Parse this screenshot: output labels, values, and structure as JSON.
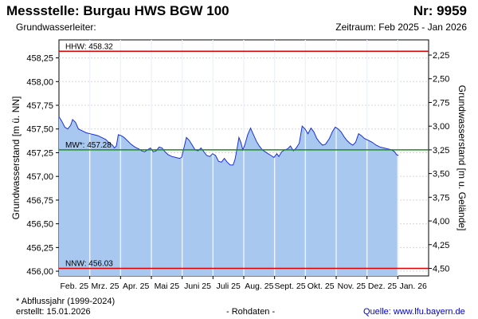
{
  "header": {
    "title": "Messstelle: Burgau HWS BGW 100",
    "number": "Nr: 9959",
    "aquifer": "Grundwasserleiter:",
    "period": "Zeitraum: Feb 2025 - Jan 2026"
  },
  "footer": {
    "note": "* Abflussjahr (1999-2024)",
    "created": "erstellt:  15.01.2026",
    "raw": "- Rohdaten -",
    "source": "Quelle:  www.lfu.bayern.de"
  },
  "colors": {
    "area_fill": "#a9c8ef",
    "line": "#1a2fd6",
    "hhw": "#e00000",
    "nnw": "#e00000",
    "mw": "#1f8a1f",
    "grid": "#d8d8d8"
  },
  "chart_data": {
    "type": "area",
    "ylabel": "Grundwasserstand [m ü. NN]",
    "ylabel_right": "Grundwasserstand [m u. Gelände]",
    "ylim": [
      455.95,
      458.44
    ],
    "yticks": [
      456.0,
      456.25,
      456.5,
      456.75,
      457.0,
      457.25,
      457.5,
      457.75,
      458.0,
      458.25
    ],
    "ytick_labels": [
      "456,00",
      "456,25",
      "456,50",
      "456,75",
      "457,00",
      "457,25",
      "457,50",
      "457,75",
      "458,00",
      "458,25"
    ],
    "ground_level": 460.53,
    "right_ticks": [
      2.25,
      2.5,
      2.75,
      3.0,
      3.25,
      3.5,
      3.75,
      4.0,
      4.25,
      4.5
    ],
    "right_tick_labels": [
      "2,25",
      "2,50",
      "2,75",
      "3,00",
      "3,25",
      "3,50",
      "3,75",
      "4,00",
      "4,25",
      "4,50"
    ],
    "x_months": [
      "Feb. 25",
      "Mrz. 25",
      "Apr. 25",
      "Mai 25",
      "Juni 25",
      "Juli 25",
      "Aug. 25",
      "Sept. 25",
      "Okt. 25",
      "Nov. 25",
      "Dez. 25",
      "Jan. 26"
    ],
    "x_range_days": [
      0,
      380
    ],
    "reference_lines": [
      {
        "label": "HHW: 458.32",
        "value": 458.32,
        "key": "hhw"
      },
      {
        "label": "MW*: 457.28",
        "value": 457.28,
        "key": "mw"
      },
      {
        "label": "NNW: 456.03",
        "value": 456.03,
        "key": "nnw"
      }
    ],
    "series": [
      {
        "values": [
          [
            0,
            457.63
          ],
          [
            3,
            457.58
          ],
          [
            6,
            457.52
          ],
          [
            9,
            457.5
          ],
          [
            12,
            457.54
          ],
          [
            14,
            457.6
          ],
          [
            17,
            457.57
          ],
          [
            20,
            457.5
          ],
          [
            24,
            457.48
          ],
          [
            28,
            457.46
          ],
          [
            32,
            457.45
          ],
          [
            36,
            457.44
          ],
          [
            40,
            457.43
          ],
          [
            44,
            457.41
          ],
          [
            48,
            457.39
          ],
          [
            52,
            457.35
          ],
          [
            55,
            457.33
          ],
          [
            57,
            457.3
          ],
          [
            59,
            457.32
          ],
          [
            61,
            457.44
          ],
          [
            64,
            457.43
          ],
          [
            67,
            457.41
          ],
          [
            70,
            457.38
          ],
          [
            74,
            457.34
          ],
          [
            78,
            457.31
          ],
          [
            82,
            457.29
          ],
          [
            85,
            457.27
          ],
          [
            88,
            457.26
          ],
          [
            91,
            457.28
          ],
          [
            94,
            457.3
          ],
          [
            97,
            457.26
          ],
          [
            100,
            457.27
          ],
          [
            103,
            457.31
          ],
          [
            106,
            457.3
          ],
          [
            109,
            457.26
          ],
          [
            112,
            457.23
          ],
          [
            116,
            457.21
          ],
          [
            120,
            457.2
          ],
          [
            124,
            457.19
          ],
          [
            126,
            457.2
          ],
          [
            128,
            457.28
          ],
          [
            131,
            457.41
          ],
          [
            134,
            457.38
          ],
          [
            137,
            457.33
          ],
          [
            140,
            457.28
          ],
          [
            143,
            457.27
          ],
          [
            146,
            457.3
          ],
          [
            149,
            457.26
          ],
          [
            152,
            457.22
          ],
          [
            155,
            457.21
          ],
          [
            158,
            457.24
          ],
          [
            161,
            457.22
          ],
          [
            164,
            457.16
          ],
          [
            167,
            457.15
          ],
          [
            170,
            457.19
          ],
          [
            173,
            457.15
          ],
          [
            176,
            457.12
          ],
          [
            179,
            457.12
          ],
          [
            181,
            457.18
          ],
          [
            183,
            457.29
          ],
          [
            185,
            457.41
          ],
          [
            187,
            457.36
          ],
          [
            189,
            457.28
          ],
          [
            191,
            457.33
          ],
          [
            194,
            457.44
          ],
          [
            197,
            457.51
          ],
          [
            200,
            457.44
          ],
          [
            203,
            457.37
          ],
          [
            206,
            457.32
          ],
          [
            209,
            457.28
          ],
          [
            212,
            457.26
          ],
          [
            215,
            457.24
          ],
          [
            218,
            457.22
          ],
          [
            221,
            457.2
          ],
          [
            224,
            457.24
          ],
          [
            226,
            457.21
          ],
          [
            229,
            457.26
          ],
          [
            232,
            457.28
          ],
          [
            235,
            457.29
          ],
          [
            238,
            457.32
          ],
          [
            241,
            457.27
          ],
          [
            244,
            457.3
          ],
          [
            247,
            457.35
          ],
          [
            250,
            457.53
          ],
          [
            253,
            457.5
          ],
          [
            256,
            457.45
          ],
          [
            259,
            457.51
          ],
          [
            262,
            457.47
          ],
          [
            265,
            457.4
          ],
          [
            268,
            457.36
          ],
          [
            271,
            457.33
          ],
          [
            274,
            457.34
          ],
          [
            278,
            457.4
          ],
          [
            281,
            457.47
          ],
          [
            284,
            457.52
          ],
          [
            287,
            457.5
          ],
          [
            290,
            457.47
          ],
          [
            293,
            457.42
          ],
          [
            296,
            457.38
          ],
          [
            299,
            457.35
          ],
          [
            302,
            457.33
          ],
          [
            305,
            457.36
          ],
          [
            308,
            457.45
          ],
          [
            311,
            457.43
          ],
          [
            314,
            457.4
          ],
          [
            318,
            457.38
          ],
          [
            322,
            457.36
          ],
          [
            326,
            457.33
          ],
          [
            330,
            457.31
          ],
          [
            334,
            457.3
          ],
          [
            338,
            457.29
          ],
          [
            342,
            457.28
          ],
          [
            345,
            457.26
          ],
          [
            347,
            457.23
          ],
          [
            349,
            457.22
          ]
        ]
      }
    ]
  }
}
